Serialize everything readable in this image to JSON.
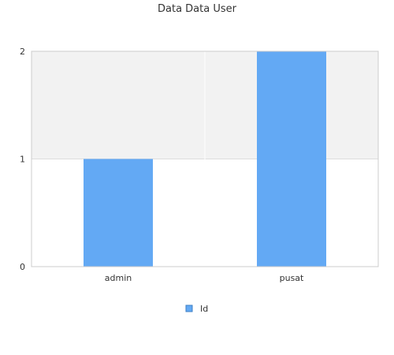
{
  "colors": {
    "bar": "#63a9f4",
    "bar_edge": "#5a9be0",
    "band_alt": "#f2f2f2",
    "grid": "#dddddd",
    "axis": "#cccccc"
  },
  "chart_data": {
    "type": "bar",
    "title": "Data Data User",
    "xlabel": "",
    "ylabel": "",
    "categories": [
      "admin",
      "pusat"
    ],
    "series": [
      {
        "name": "Id",
        "values": [
          1,
          2
        ]
      }
    ],
    "ylim": [
      0,
      2
    ],
    "yticks": [
      "0",
      "1",
      "2"
    ],
    "grid": true,
    "legend_position": "bottom"
  }
}
